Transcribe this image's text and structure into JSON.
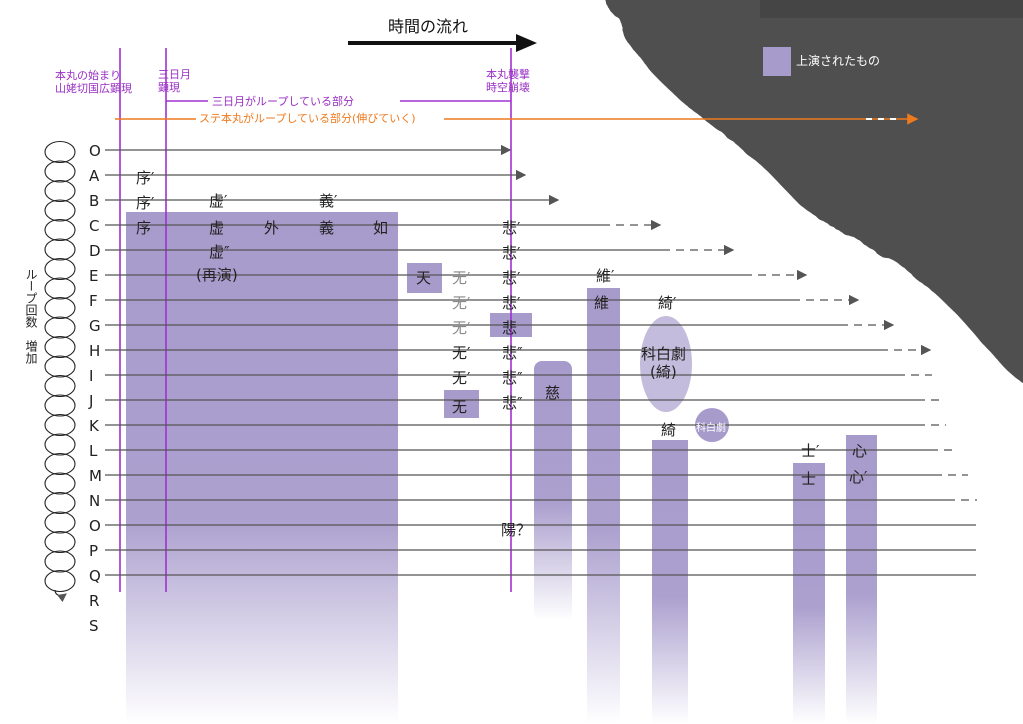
{
  "time_arrow_label": "時間の流れ",
  "legend_label": "上演されたもの",
  "events": {
    "start": [
      "本丸の始まり",
      "山姥切国広顕現"
    ],
    "mikazuki": [
      "三日月",
      "顕現"
    ],
    "collapse": [
      "本丸襲撃",
      "時空崩壊"
    ]
  },
  "spans": {
    "mikazuki_loop": "三日月がループしている部分",
    "stage_loop": "ステ本丸がループしている部分(伸びていく)"
  },
  "side_label": "ループ回数　増加",
  "rows": [
    "O",
    "A",
    "B",
    "C",
    "D",
    "E",
    "F",
    "G",
    "H",
    "I",
    "J",
    "K",
    "L",
    "M",
    "N",
    "O",
    "P",
    "Q",
    "R",
    "S"
  ],
  "cells": {
    "A_jo": "序′",
    "B_jo": "序′",
    "B_kyo": "虚′",
    "B_gi": "義′",
    "C_jo": "序",
    "C_kyo": "虚",
    "C_gai": "外",
    "C_gi": "義",
    "C_nyo": "如",
    "C_hi": "悲′",
    "D_kyo": "虚″",
    "D_hi": "悲′",
    "E_saien": "(再演)",
    "E_ten": "天",
    "E_mu": "无′",
    "E_hi": "悲′",
    "E_i": "維′",
    "F_mu": "无′",
    "F_hi": "悲′",
    "F_i": "維",
    "F_ki": "綺′",
    "G_mu": "无′",
    "G_hi": "悲",
    "H_mu": "无′",
    "H_hi": "悲″",
    "H_kahakugeki": "科白劇",
    "I_mu": "无′",
    "I_hi": "悲″",
    "I_ki": "(綺)",
    "I_ji": "慈",
    "J_mu": "无",
    "J_hi": "悲″",
    "K_ki": "綺",
    "K_kahakugeki": "科白劇",
    "L_shi": "士′",
    "L_shin": "心",
    "M_shi": "士",
    "M_shin": "心′",
    "O_yo": "陽？"
  },
  "colors": {
    "performed": "#a79bcc",
    "event_line": "#a030d0",
    "stage_loop": "#ee7a1e",
    "dark_area": "#4f4f4f"
  }
}
